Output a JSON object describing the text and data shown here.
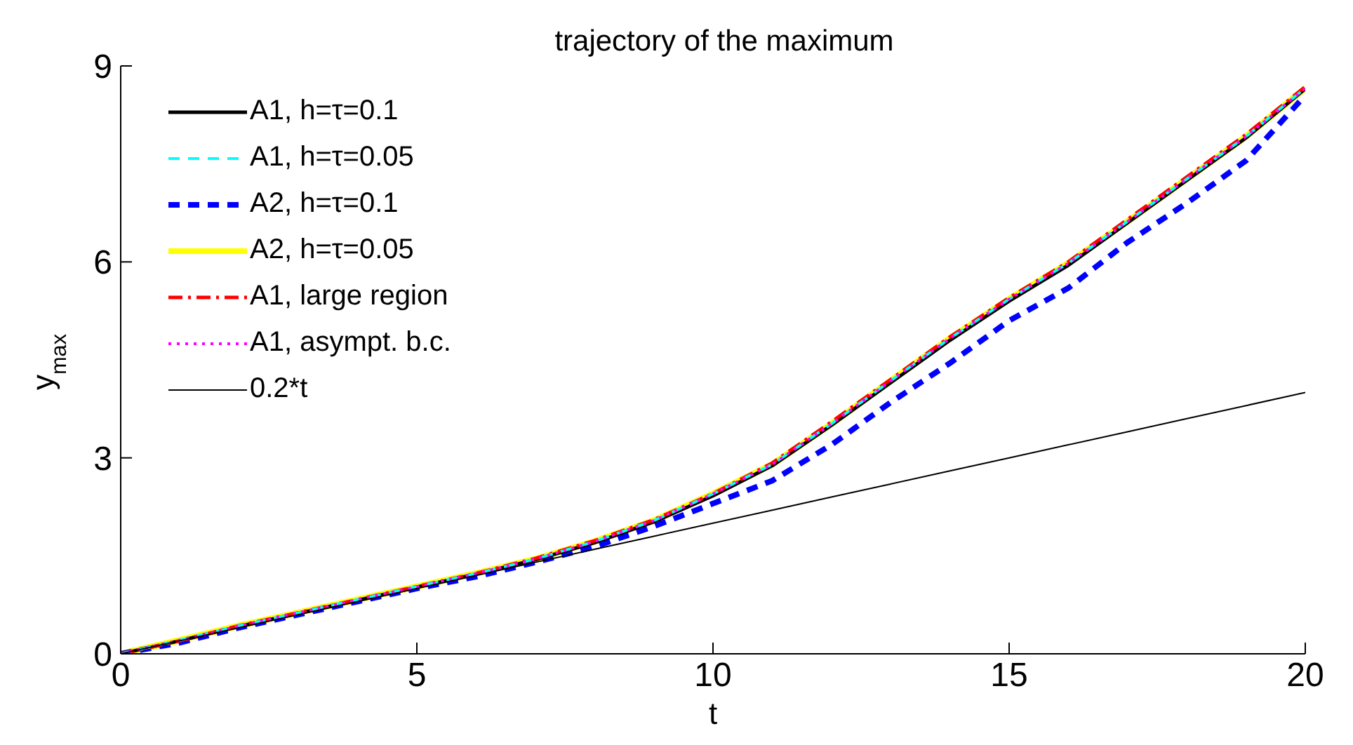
{
  "chart_data": {
    "type": "line",
    "title": "trajectory of the maximum",
    "xlabel": "t",
    "ylabel": "y$_{max}$",
    "x": [
      0,
      1,
      2,
      3,
      4,
      5,
      6,
      7,
      8,
      9,
      10,
      11,
      12,
      13,
      14,
      15,
      16,
      17,
      18,
      19,
      20
    ],
    "xlim": [
      0,
      20
    ],
    "xticks": [
      0,
      5,
      10,
      15,
      20
    ],
    "ylim": [
      0,
      9
    ],
    "yticks": [
      0,
      3,
      6,
      9
    ],
    "grid": false,
    "legend": "top left",
    "marker": "none",
    "series": [
      {
        "name": "A1, h=τ=0.1",
        "color": "#000000",
        "line_style": "solid",
        "values": [
          0,
          0.2,
          0.42,
          0.62,
          0.82,
          1.02,
          1.22,
          1.44,
          1.7,
          2.02,
          2.42,
          2.88,
          3.5,
          4.15,
          4.8,
          5.4,
          5.95,
          6.6,
          7.25,
          7.9,
          8.65
        ]
      },
      {
        "name": "A1, h=τ=0.05",
        "color": "#00ffff",
        "line_style": "dashed",
        "values": [
          0,
          0.21,
          0.43,
          0.63,
          0.83,
          1.03,
          1.23,
          1.45,
          1.72,
          2.04,
          2.45,
          2.9,
          3.52,
          4.18,
          4.83,
          5.43,
          5.98,
          6.62,
          7.27,
          7.92,
          8.66
        ]
      },
      {
        "name": "A2, h=τ=0.1",
        "color": "#0000ff",
        "line_style": "dashed",
        "values": [
          0,
          0.17,
          0.4,
          0.6,
          0.8,
          1.0,
          1.18,
          1.4,
          1.64,
          1.95,
          2.3,
          2.65,
          3.2,
          3.85,
          4.45,
          5.1,
          5.6,
          6.3,
          6.9,
          7.55,
          8.55
        ]
      },
      {
        "name": "A2, h=τ=0.05",
        "color": "#ffff00",
        "line_style": "solid",
        "values": [
          0,
          0.21,
          0.43,
          0.63,
          0.83,
          1.03,
          1.23,
          1.45,
          1.72,
          2.04,
          2.45,
          2.9,
          3.52,
          4.18,
          4.83,
          5.43,
          5.98,
          6.62,
          7.27,
          7.92,
          8.66
        ]
      },
      {
        "name": "A1, large region",
        "color": "#ff0000",
        "line_style": "dashdot",
        "values": [
          0,
          0.2,
          0.43,
          0.63,
          0.83,
          1.03,
          1.23,
          1.46,
          1.73,
          2.05,
          2.45,
          2.92,
          3.55,
          4.2,
          4.85,
          5.45,
          6.0,
          6.65,
          7.3,
          7.95,
          8.68
        ]
      },
      {
        "name": "A1, asympt. b.c.",
        "color": "#ff00ff",
        "line_style": "dotted",
        "values": [
          0,
          0.21,
          0.43,
          0.63,
          0.83,
          1.03,
          1.23,
          1.45,
          1.72,
          2.04,
          2.45,
          2.9,
          3.52,
          4.18,
          4.83,
          5.43,
          5.98,
          6.62,
          7.27,
          7.92,
          8.66
        ]
      },
      {
        "name": "0.2*t",
        "color": "#000000",
        "line_style": "solid",
        "values": [
          0,
          0.2,
          0.4,
          0.6,
          0.8,
          1.0,
          1.2,
          1.4,
          1.6,
          1.8,
          2.0,
          2.2,
          2.4,
          2.6,
          2.8,
          3.0,
          3.2,
          3.4,
          3.6,
          3.8,
          4.0
        ]
      }
    ]
  }
}
